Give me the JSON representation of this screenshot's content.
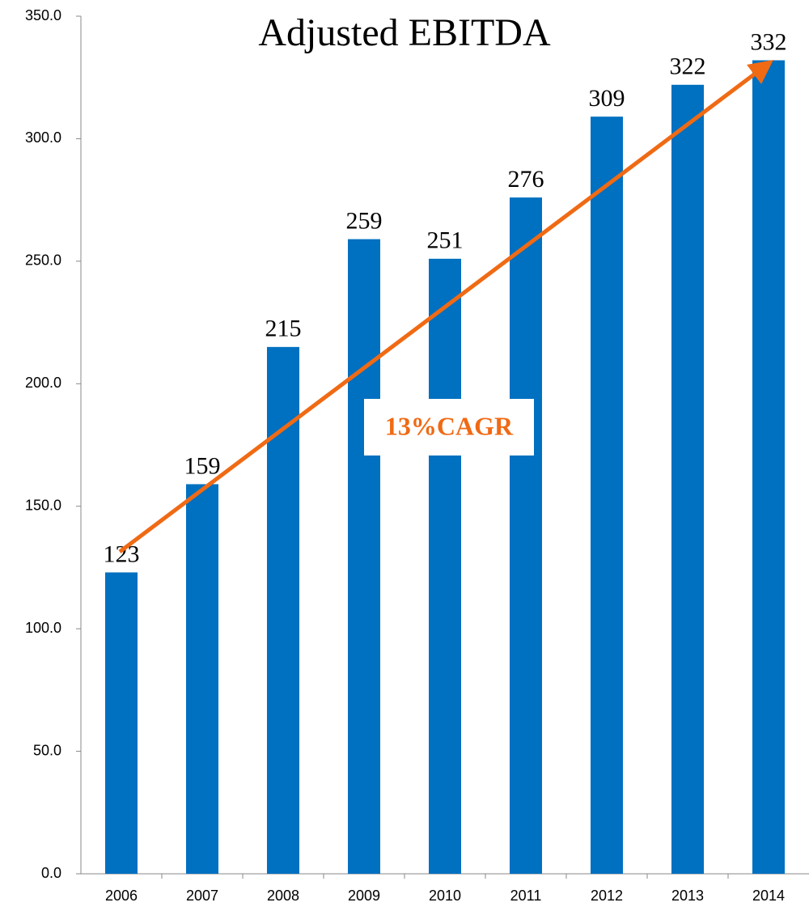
{
  "chart_data": {
    "type": "bar",
    "title": "Adjusted EBITDA",
    "categories": [
      "2006",
      "2007",
      "2008",
      "2009",
      "2010",
      "2011",
      "2012",
      "2013",
      "2014"
    ],
    "values": [
      123,
      159,
      215,
      259,
      251,
      276,
      309,
      322,
      332
    ],
    "color": "#0070c0",
    "annotation": "13%CAGR",
    "ylim": [
      0,
      350
    ],
    "yticks": [
      {
        "value": 0,
        "label": "0.0"
      },
      {
        "value": 50,
        "label": "50.0"
      },
      {
        "value": 100,
        "label": "100.0"
      },
      {
        "value": 150,
        "label": "150.0"
      },
      {
        "value": 200,
        "label": "200.0"
      },
      {
        "value": 250,
        "label": "250.0"
      },
      {
        "value": 300,
        "label": "300.0"
      },
      {
        "value": 350,
        "label": "350.0"
      }
    ],
    "grid": false
  }
}
